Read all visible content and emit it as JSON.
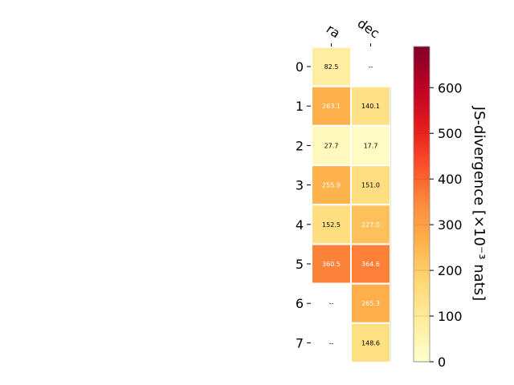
{
  "chart_data": {
    "type": "heatmap",
    "columns": [
      "ra",
      "dec"
    ],
    "rows": [
      "0",
      "1",
      "2",
      "3",
      "4",
      "5",
      "6",
      "7"
    ],
    "values": [
      [
        82.5,
        null
      ],
      [
        263.1,
        140.1
      ],
      [
        27.7,
        17.7
      ],
      [
        255.9,
        151.0
      ],
      [
        152.5,
        227.0
      ],
      [
        360.5,
        364.6
      ],
      [
        null,
        265.3
      ],
      [
        null,
        148.6
      ]
    ],
    "cell_labels": [
      [
        "82.5",
        "--"
      ],
      [
        "263.1",
        "140.1"
      ],
      [
        "27.7",
        "17.7"
      ],
      [
        "255.9",
        "151.0"
      ],
      [
        "152.5",
        "227.0"
      ],
      [
        "360.5",
        "364.6"
      ],
      [
        "--",
        "265.3"
      ],
      [
        "--",
        "148.6"
      ]
    ],
    "missing_label": "--",
    "colormap": "YlOrRd",
    "colorbar": {
      "label": "JS-divergence [×10⁻³ nats]",
      "vmin": 0,
      "vmax": 690,
      "ticks": [
        0,
        100,
        200,
        300,
        400,
        500,
        600
      ],
      "tick_labels": [
        "0",
        "100",
        "200",
        "300",
        "400",
        "500",
        "600"
      ]
    }
  }
}
